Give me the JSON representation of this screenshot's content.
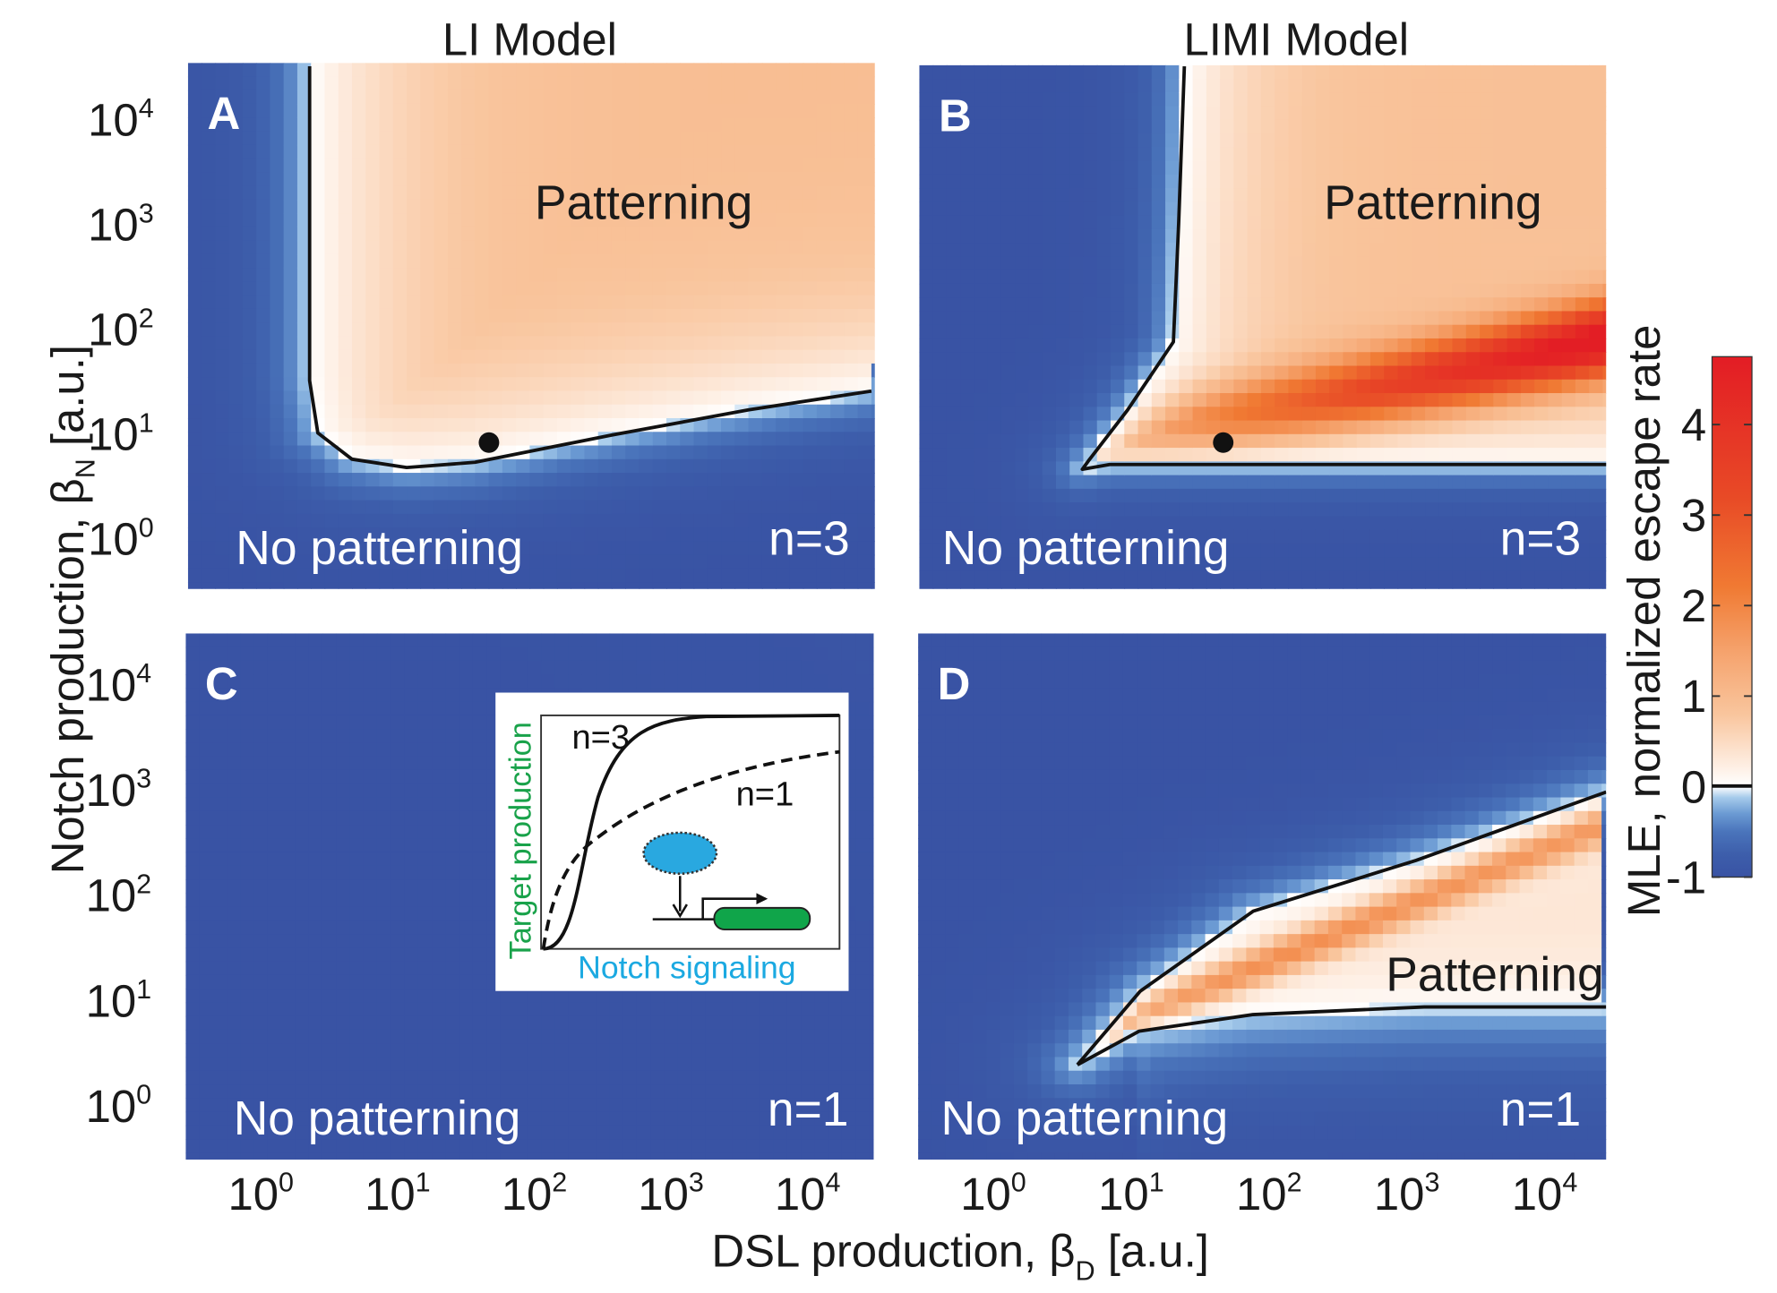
{
  "titles": {
    "left": "LI Model",
    "right": "LIMI Model"
  },
  "axes": {
    "y_title_main": "Notch production, β",
    "y_title_sub": "N",
    "y_title_unit": " [a.u.]",
    "x_title_main": "DSL production, β",
    "x_title_sub": "D",
    "x_title_unit": " [a.u.]",
    "colorbar_title": "MLE, normalized escape rate"
  },
  "chart_data": {
    "type": "heatmap",
    "x_scale": "log",
    "y_scale": "log",
    "xlim": [
      0.25,
      25000
    ],
    "ylim": [
      0.32,
      31623
    ],
    "x_ticks": [
      {
        "base": "10",
        "exp": "0"
      },
      {
        "base": "10",
        "exp": "1"
      },
      {
        "base": "10",
        "exp": "2"
      },
      {
        "base": "10",
        "exp": "3"
      },
      {
        "base": "10",
        "exp": "4"
      }
    ],
    "y_ticks": [
      {
        "base": "10",
        "exp": "4"
      },
      {
        "base": "10",
        "exp": "3"
      },
      {
        "base": "10",
        "exp": "2"
      },
      {
        "base": "10",
        "exp": "1"
      },
      {
        "base": "10",
        "exp": "0"
      }
    ],
    "colorbar": {
      "range": [
        -1,
        4.7
      ],
      "ticks": [
        "-1",
        "0",
        "1",
        "2",
        "3",
        "4"
      ],
      "colors": {
        "min": "#3953a4",
        "zero": "#ffffff",
        "low_positive": "#f9c59d",
        "mid": "#f07a33",
        "max": "#e31e25"
      }
    },
    "panels": [
      {
        "letter": "A",
        "model": "LI",
        "hill": "n=3",
        "region_inside": "Patterning",
        "region_outside": "No patterning",
        "boundary": [
          [
            1.95,
            31623
          ],
          [
            1.95,
            31.6
          ],
          [
            2.24,
            10
          ],
          [
            3.98,
            5.62
          ],
          [
            10,
            4.68
          ],
          [
            31.6,
            5.25
          ],
          [
            316,
            9.55
          ],
          [
            3162,
            16.6
          ],
          [
            25119,
            25.1
          ]
        ],
        "marker": [
          40,
          8.1
        ]
      },
      {
        "letter": "B",
        "model": "LIMI",
        "hill": "n=3",
        "region_inside": "Patterning",
        "region_outside": "No patterning",
        "boundary": [
          [
            20.9,
            31623
          ],
          [
            19,
            1000
          ],
          [
            17.4,
            74
          ],
          [
            8.1,
            16.6
          ],
          [
            4.2,
            5.4
          ],
          [
            3.8,
            4.5
          ],
          [
            6,
            5.0
          ],
          [
            30,
            5.0
          ],
          [
            25119,
            5.0
          ]
        ],
        "marker": [
          40,
          8.1
        ]
      },
      {
        "letter": "C",
        "model": "LI",
        "hill": "n=1",
        "region_outside": "No patterning",
        "boundary": [],
        "inset": {
          "y_label": "Target production",
          "x_label": "Notch signaling",
          "curve_solid": "n=3",
          "curve_dashed": "n=1",
          "y_label_color": "#19a24a",
          "x_label_color": "#1ba9e1"
        }
      },
      {
        "letter": "D",
        "model": "LIMI",
        "hill": "n=1",
        "region_inside": "Patterning",
        "region_outside": "No patterning",
        "boundary_upper": [
          [
            3.5,
            2.4
          ],
          [
            10,
            12
          ],
          [
            66,
            69
          ],
          [
            1000,
            209
          ],
          [
            24000,
            933
          ]
        ],
        "boundary_lower": [
          [
            3.5,
            2.4
          ],
          [
            9.8,
            5.0
          ],
          [
            66,
            7.2
          ],
          [
            1148,
            8.5
          ],
          [
            24000,
            8.5
          ]
        ]
      }
    ]
  }
}
